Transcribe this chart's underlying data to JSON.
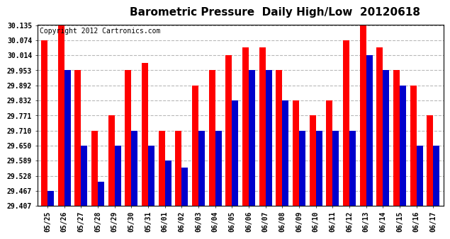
{
  "title": "Barometric Pressure  Daily High/Low  20120618",
  "copyright": "Copyright 2012 Cartronics.com",
  "dates": [
    "05/25",
    "05/26",
    "05/27",
    "05/28",
    "05/29",
    "05/30",
    "05/31",
    "06/01",
    "06/02",
    "06/03",
    "06/04",
    "06/05",
    "06/06",
    "06/07",
    "06/08",
    "06/09",
    "06/10",
    "06/11",
    "06/12",
    "06/13",
    "06/14",
    "06/15",
    "06/16",
    "06/17"
  ],
  "highs": [
    30.074,
    30.135,
    29.953,
    29.71,
    29.771,
    29.953,
    29.983,
    29.71,
    29.71,
    29.892,
    29.953,
    30.014,
    30.044,
    30.044,
    29.953,
    29.832,
    29.771,
    29.832,
    30.074,
    30.135,
    30.044,
    29.953,
    29.892,
    29.771
  ],
  "lows": [
    29.467,
    29.953,
    29.65,
    29.503,
    29.65,
    29.71,
    29.65,
    29.589,
    29.56,
    29.71,
    29.71,
    29.832,
    29.953,
    29.953,
    29.832,
    29.71,
    29.71,
    29.71,
    29.71,
    30.014,
    29.953,
    29.892,
    29.65,
    29.65
  ],
  "yticks": [
    29.407,
    29.467,
    29.528,
    29.589,
    29.65,
    29.71,
    29.771,
    29.832,
    29.892,
    29.953,
    30.014,
    30.074,
    30.135
  ],
  "ymin": 29.407,
  "ymax": 30.135,
  "high_color": "#ff0000",
  "low_color": "#0000cc",
  "bg_color": "#ffffff",
  "grid_color": "#b8b8b8",
  "title_fontsize": 11,
  "copyright_fontsize": 7
}
